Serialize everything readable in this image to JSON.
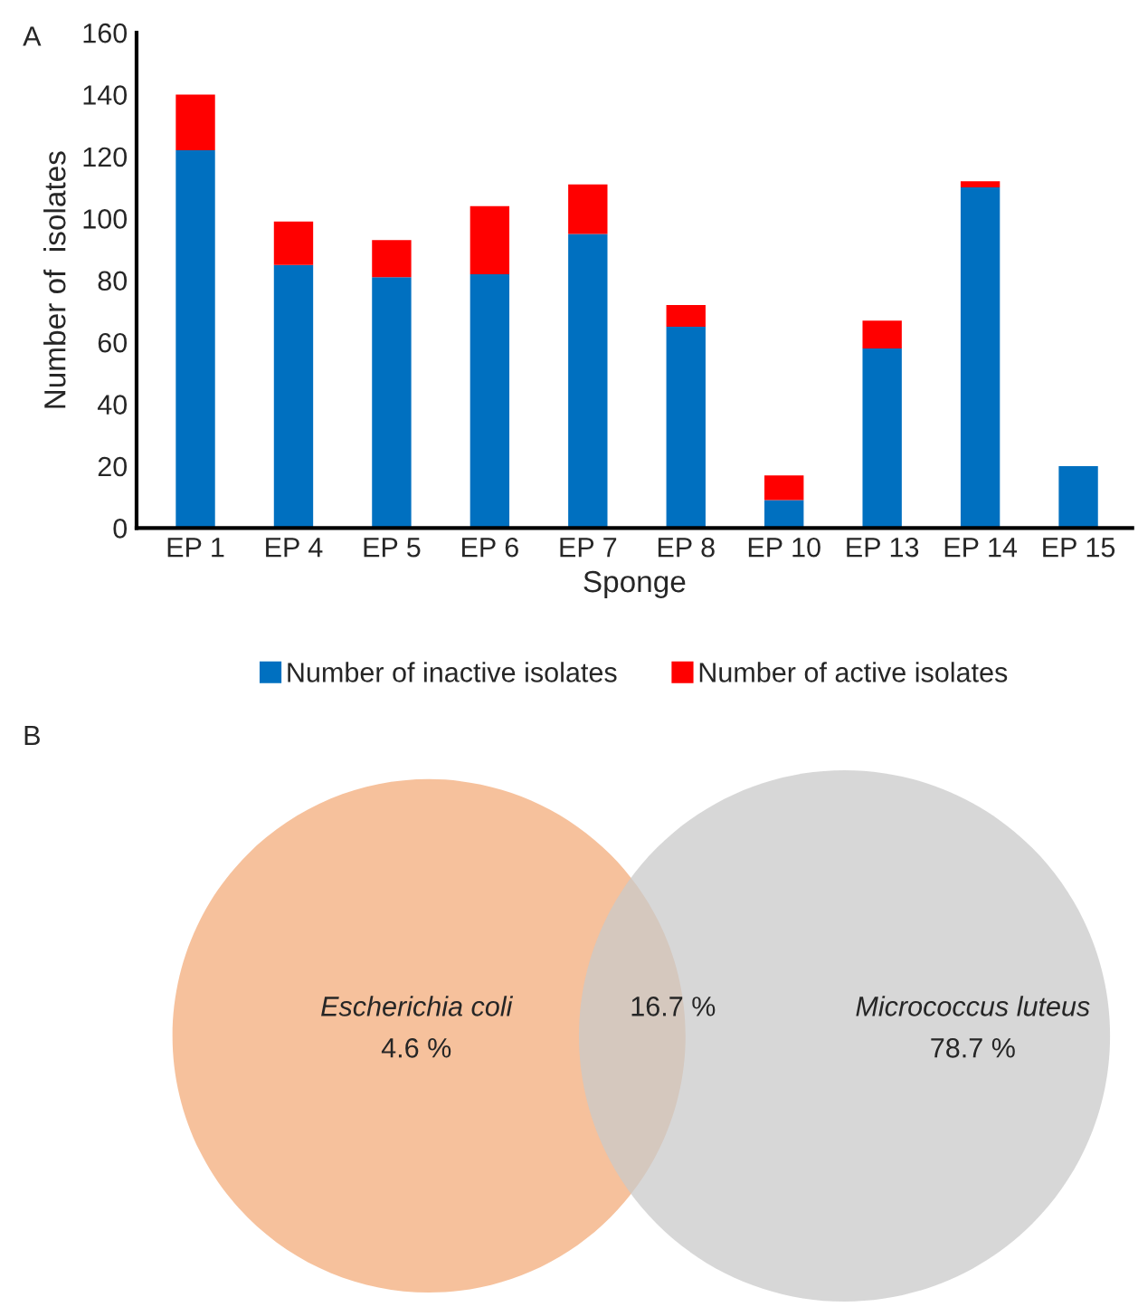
{
  "chart_data": [
    {
      "type": "bar",
      "title": "A",
      "xlabel": "Sponge",
      "ylabel": "Number of  isolates",
      "stacked": true,
      "legend": "bottom",
      "grid": false,
      "categories": [
        "EP 1",
        "EP 4",
        "EP 5",
        "EP 6",
        "EP 7",
        "EP 8",
        "EP 10",
        "EP 13",
        "EP 14",
        "EP 15"
      ],
      "series": [
        {
          "name": "Number of inactive isolates",
          "color": "#0070c0",
          "values": [
            122,
            85,
            81,
            82,
            95,
            65,
            9,
            58,
            110,
            20
          ]
        },
        {
          "name": "Number of active isolates",
          "color": "#ff0000",
          "values": [
            18,
            14,
            12,
            22,
            16,
            7,
            8,
            9,
            2,
            0
          ]
        }
      ],
      "ylim": [
        0,
        160
      ],
      "yticks": [
        0,
        20,
        40,
        60,
        80,
        100,
        120,
        140,
        160
      ]
    },
    {
      "type": "other",
      "title": "B",
      "annotations": [
        "Escherichia coli",
        "4.6 %",
        "16.7 %",
        "Micrococcus luteus",
        "78.7 %"
      ],
      "colors": [
        "#f4b183",
        "#c9c9c9"
      ]
    }
  ]
}
